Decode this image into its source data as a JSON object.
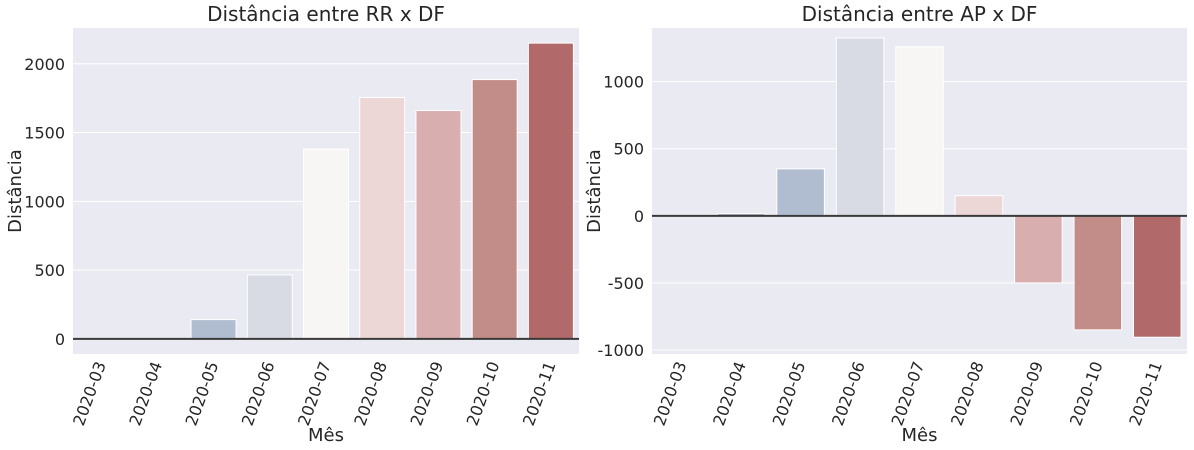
{
  "chart_data": [
    {
      "type": "bar",
      "title": "Distância entre RR x DF",
      "xlabel": "Mês",
      "ylabel": "Distância",
      "categories": [
        "2020-03",
        "2020-04",
        "2020-05",
        "2020-06",
        "2020-07",
        "2020-08",
        "2020-09",
        "2020-10",
        "2020-11"
      ],
      "values": [
        0,
        0,
        140,
        465,
        1380,
        1755,
        1660,
        1885,
        2150
      ],
      "ylim": [
        -110,
        2260
      ],
      "yticks": [
        0,
        500,
        1000,
        1500,
        2000
      ],
      "colors": [
        "#9aa9c1",
        "#a6b3c7",
        "#b0bccf",
        "#d8dbe3",
        "#f8f5f5",
        "#ecd6d6",
        "#d9aeae",
        "#c28c89",
        "#b1696a"
      ],
      "zero_line": true,
      "grid": true
    },
    {
      "type": "bar",
      "title": "Distância entre AP x DF",
      "xlabel": "Mês",
      "ylabel": "Distância",
      "categories": [
        "2020-03",
        "2020-04",
        "2020-05",
        "2020-06",
        "2020-07",
        "2020-08",
        "2020-09",
        "2020-10",
        "2020-11"
      ],
      "values": [
        0,
        15,
        350,
        1325,
        1260,
        150,
        -500,
        -850,
        -905
      ],
      "ylim": [
        -1030,
        1400
      ],
      "yticks": [
        -1000,
        -500,
        0,
        500,
        1000
      ],
      "colors": [
        "#9aa9c1",
        "#7d8ca3",
        "#b0bccf",
        "#d8dbe3",
        "#f8f5f5",
        "#ecd6d6",
        "#d9aeae",
        "#c28c89",
        "#b1696a"
      ],
      "zero_line": true,
      "grid": true
    }
  ]
}
